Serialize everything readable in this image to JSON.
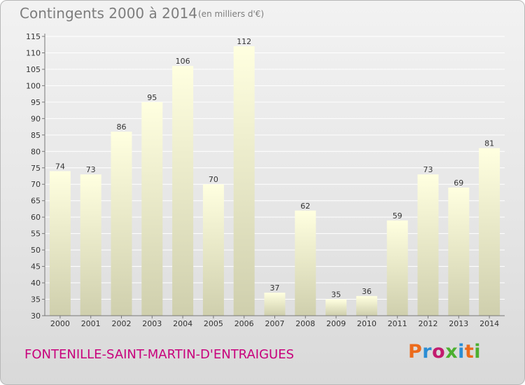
{
  "title": "Contingents 2000 à 2014",
  "subtitle": "(en milliers d'€)",
  "commune": "FONTENILLE-SAINT-MARTIN-D'ENTRAIGUES",
  "logo": {
    "text": "Proxiti",
    "colors": [
      "#ec6b1c",
      "#2a8dd4",
      "#c21b6e",
      "#4caf2f",
      "#2a8dd4",
      "#ec6b1c",
      "#4caf2f"
    ]
  },
  "chart_data": {
    "type": "bar",
    "categories": [
      "2000",
      "2001",
      "2002",
      "2003",
      "2004",
      "2005",
      "2006",
      "2007",
      "2008",
      "2009",
      "2010",
      "2011",
      "2012",
      "2013",
      "2014"
    ],
    "values": [
      74,
      73,
      86,
      95,
      106,
      70,
      112,
      37,
      62,
      35,
      36,
      59,
      73,
      69,
      81
    ],
    "title": "Contingents 2000 à 2014",
    "subtitle": "(en milliers d'€)",
    "ylim": [
      30,
      115
    ],
    "yticks": [
      30,
      35,
      40,
      45,
      50,
      55,
      60,
      65,
      70,
      75,
      80,
      85,
      90,
      95,
      100,
      105,
      110,
      115
    ],
    "grid": true,
    "bar_gradient": [
      "#ffffe0",
      "#cfcfad"
    ]
  }
}
